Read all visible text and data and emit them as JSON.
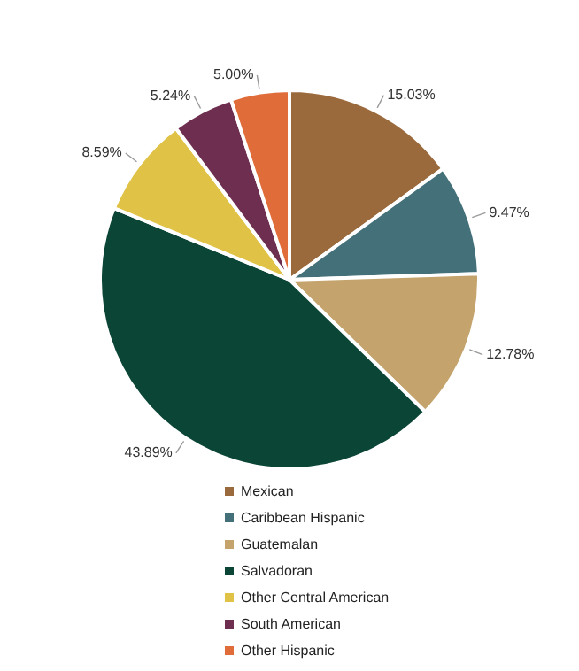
{
  "chart_data": {
    "type": "pie",
    "categories": [
      "Mexican",
      "Caribbean Hispanic",
      "Guatemalan",
      "Salvadoran",
      "Other Central American",
      "South American",
      "Other Hispanic"
    ],
    "values": [
      15.03,
      9.47,
      12.78,
      43.89,
      8.59,
      5.24,
      5.0
    ],
    "value_labels": [
      "15.03%",
      "9.47%",
      "12.78%",
      "43.89%",
      "8.59%",
      "5.24%",
      "5.00%"
    ],
    "colors": [
      "#9b6a3c",
      "#44707a",
      "#c4a46c",
      "#0b4536",
      "#dfc246",
      "#6e2e4f",
      "#e06c3a"
    ],
    "legend": "bottom"
  }
}
